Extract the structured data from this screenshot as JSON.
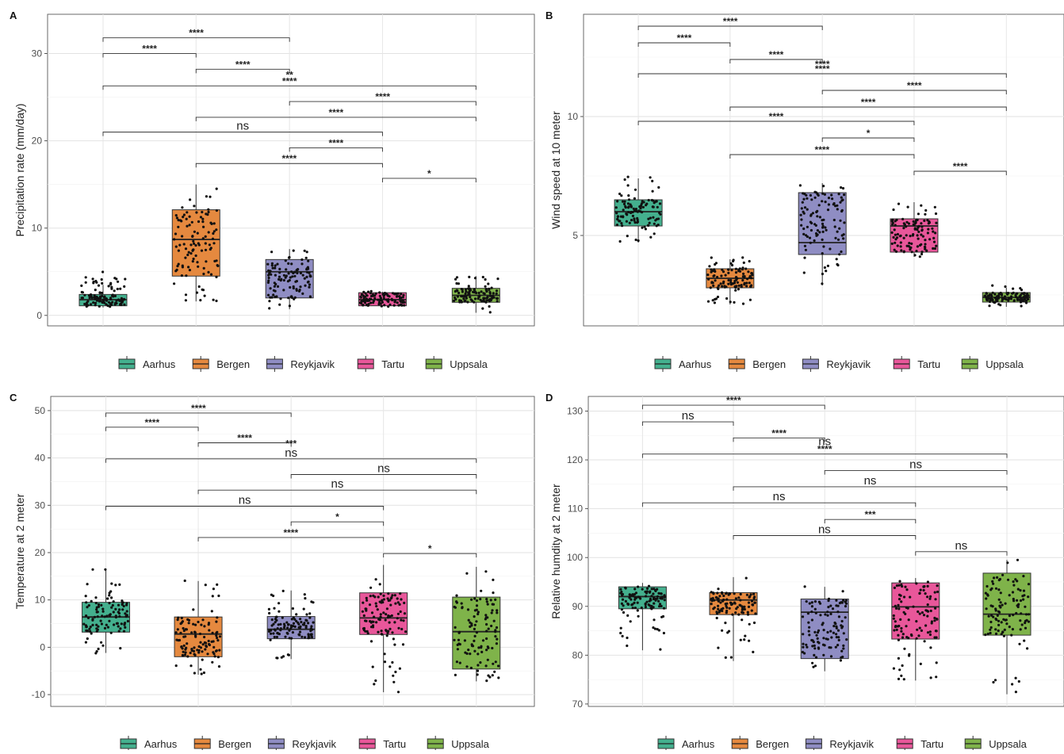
{
  "figure": {
    "legend_title": "",
    "legend_position": "bottom",
    "colors": {
      "Aarhus": "#44b08e",
      "Bergen": "#e5893f",
      "Reykjavik": "#8f8dc3",
      "Tartu": "#e8579a",
      "Uppsala": "#7fb34a"
    }
  },
  "chart_data": [
    {
      "panel": "A",
      "type": "box",
      "title": "",
      "xlabel": "",
      "ylabel": "Precipitation rate (mm/day)",
      "grid": true,
      "legend_position": "bottom",
      "ylim": [
        -1.2,
        34.5
      ],
      "yticks": [
        0,
        10,
        20,
        30
      ],
      "categories": [
        "Aarhus",
        "Bergen",
        "Reykjavik",
        "Tartu",
        "Uppsala"
      ],
      "boxes": [
        {
          "name": "Aarhus",
          "q1": 1.1,
          "median": 1.8,
          "q3": 2.4,
          "whisker_low": 0.9,
          "whisker_high": 3.5,
          "points_range": [
            0.9,
            5.0
          ]
        },
        {
          "name": "Bergen",
          "q1": 4.5,
          "median": 8.7,
          "q3": 12.1,
          "whisker_low": 1.6,
          "whisker_high": 15.0,
          "points_range": [
            1.5,
            15.0
          ]
        },
        {
          "name": "Reykjavik",
          "q1": 2.0,
          "median": 5.0,
          "q3": 6.4,
          "whisker_low": 0.7,
          "whisker_high": 7.6,
          "points_range": [
            0.7,
            7.7
          ]
        },
        {
          "name": "Tartu",
          "q1": 1.1,
          "median": 1.8,
          "q3": 2.6,
          "whisker_low": 1.0,
          "whisker_high": 2.7,
          "points_range": [
            1.0,
            2.8
          ]
        },
        {
          "name": "Uppsala",
          "q1": 1.5,
          "median": 2.3,
          "q3": 3.1,
          "whisker_low": 0.3,
          "whisker_high": 4.5,
          "points_range": [
            0.3,
            4.6
          ]
        }
      ],
      "annotations": [
        {
          "from": 0,
          "to": 2,
          "label": "****",
          "y": 31.8
        },
        {
          "from": 0,
          "to": 1,
          "label": "****",
          "y": 30.0
        },
        {
          "from": 1,
          "to": 2,
          "label": "****",
          "y": 28.2
        },
        {
          "from": 2,
          "to": 2,
          "label": "**",
          "y": 27.0
        },
        {
          "from": 0,
          "to": 4,
          "label": "****",
          "y": 26.3
        },
        {
          "from": 2,
          "to": 4,
          "label": "****",
          "y": 24.5
        },
        {
          "from": 1,
          "to": 4,
          "label": "****",
          "y": 22.7
        },
        {
          "from": 0,
          "to": 3,
          "label": "ns",
          "y": 21.0
        },
        {
          "from": 2,
          "to": 3,
          "label": "****",
          "y": 19.2
        },
        {
          "from": 1,
          "to": 3,
          "label": "****",
          "y": 17.4
        },
        {
          "from": 3,
          "to": 4,
          "label": "*",
          "y": 15.7
        }
      ]
    },
    {
      "panel": "B",
      "type": "box",
      "title": "",
      "xlabel": "",
      "ylabel": "Wind speed at 10 meter",
      "grid": true,
      "legend_position": "bottom",
      "ylim": [
        1.2,
        14.3
      ],
      "yticks": [
        5,
        10
      ],
      "categories": [
        "Aarhus",
        "Bergen",
        "Reykjavik",
        "Tartu",
        "Uppsala"
      ],
      "boxes": [
        {
          "name": "Aarhus",
          "q1": 5.4,
          "median": 6.0,
          "q3": 6.5,
          "whisker_low": 4.7,
          "whisker_high": 7.4,
          "points_range": [
            4.7,
            7.5
          ]
        },
        {
          "name": "Bergen",
          "q1": 2.8,
          "median": 3.2,
          "q3": 3.6,
          "whisker_low": 2.1,
          "whisker_high": 4.0,
          "points_range": [
            2.1,
            4.1
          ]
        },
        {
          "name": "Reykjavik",
          "q1": 4.2,
          "median": 4.7,
          "q3": 6.8,
          "whisker_low": 2.9,
          "whisker_high": 7.2,
          "points_range": [
            2.9,
            7.2
          ]
        },
        {
          "name": "Tartu",
          "q1": 4.3,
          "median": 5.4,
          "q3": 5.7,
          "whisker_low": 4.1,
          "whisker_high": 6.4,
          "points_range": [
            4.1,
            6.4
          ]
        },
        {
          "name": "Uppsala",
          "q1": 2.2,
          "median": 2.4,
          "q3": 2.6,
          "whisker_low": 2.0,
          "whisker_high": 2.8,
          "points_range": [
            2.0,
            2.9
          ]
        }
      ],
      "annotations": [
        {
          "from": 0,
          "to": 2,
          "label": "****",
          "y": 13.8
        },
        {
          "from": 0,
          "to": 1,
          "label": "****",
          "y": 13.1
        },
        {
          "from": 1,
          "to": 2,
          "label": "****",
          "y": 12.4
        },
        {
          "from": 2,
          "to": 2,
          "label": "****",
          "y": 12.0
        },
        {
          "from": 0,
          "to": 4,
          "label": "****",
          "y": 11.8
        },
        {
          "from": 2,
          "to": 4,
          "label": "****",
          "y": 11.1
        },
        {
          "from": 1,
          "to": 4,
          "label": "****",
          "y": 10.4
        },
        {
          "from": 0,
          "to": 3,
          "label": "****",
          "y": 9.8
        },
        {
          "from": 2,
          "to": 3,
          "label": "*",
          "y": 9.1
        },
        {
          "from": 1,
          "to": 3,
          "label": "****",
          "y": 8.4
        },
        {
          "from": 3,
          "to": 4,
          "label": "****",
          "y": 7.7
        }
      ]
    },
    {
      "panel": "C",
      "type": "box",
      "title": "",
      "xlabel": "",
      "ylabel": "Temperature at 2 meter",
      "grid": true,
      "legend_position": "bottom",
      "ylim": [
        -12.5,
        53.0
      ],
      "yticks": [
        -10,
        0,
        10,
        20,
        30,
        40,
        50
      ],
      "categories": [
        "Aarhus",
        "Bergen",
        "Reykjavik",
        "Tartu",
        "Uppsala"
      ],
      "boxes": [
        {
          "name": "Aarhus",
          "q1": 3.2,
          "median": 6.4,
          "q3": 9.5,
          "whisker_low": -1.2,
          "whisker_high": 16.4,
          "points_range": [
            -1.3,
            16.5
          ]
        },
        {
          "name": "Bergen",
          "q1": -2.0,
          "median": 2.8,
          "q3": 6.4,
          "whisker_low": -5.8,
          "whisker_high": 14.0,
          "points_range": [
            -5.9,
            14.2
          ]
        },
        {
          "name": "Reykjavik",
          "q1": 1.8,
          "median": 3.8,
          "q3": 6.5,
          "whisker_low": -2.5,
          "whisker_high": 12.0,
          "points_range": [
            -2.6,
            12.1
          ]
        },
        {
          "name": "Tartu",
          "q1": 2.7,
          "median": 6.2,
          "q3": 11.5,
          "whisker_low": -9.5,
          "whisker_high": 17.4,
          "points_range": [
            -9.6,
            17.5
          ]
        },
        {
          "name": "Uppsala",
          "q1": -4.6,
          "median": 3.3,
          "q3": 10.6,
          "whisker_low": -7.2,
          "whisker_high": 17.0,
          "points_range": [
            -7.3,
            17.1
          ]
        }
      ],
      "annotations": [
        {
          "from": 0,
          "to": 2,
          "label": "****",
          "y": 49.5
        },
        {
          "from": 0,
          "to": 1,
          "label": "****",
          "y": 46.5
        },
        {
          "from": 1,
          "to": 2,
          "label": "****",
          "y": 43.2
        },
        {
          "from": 2,
          "to": 2,
          "label": "***",
          "y": 42.0
        },
        {
          "from": 0,
          "to": 4,
          "label": "ns",
          "y": 39.8
        },
        {
          "from": 2,
          "to": 4,
          "label": "ns",
          "y": 36.5
        },
        {
          "from": 1,
          "to": 4,
          "label": "ns",
          "y": 33.2
        },
        {
          "from": 0,
          "to": 3,
          "label": "ns",
          "y": 29.8
        },
        {
          "from": 2,
          "to": 3,
          "label": "*",
          "y": 26.5
        },
        {
          "from": 1,
          "to": 3,
          "label": "****",
          "y": 23.2
        },
        {
          "from": 3,
          "to": 4,
          "label": "*",
          "y": 19.8
        }
      ]
    },
    {
      "panel": "D",
      "type": "box",
      "title": "",
      "xlabel": "",
      "ylabel": "Relative humdity at 2 meter",
      "grid": true,
      "legend_position": "bottom",
      "ylim": [
        69.5,
        133.0
      ],
      "yticks": [
        70,
        80,
        90,
        100,
        110,
        120,
        130
      ],
      "categories": [
        "Aarhus",
        "Bergen",
        "Reykjavik",
        "Tartu",
        "Uppsala"
      ],
      "boxes": [
        {
          "name": "Aarhus",
          "q1": 89.5,
          "median": 92.0,
          "q3": 94.0,
          "whisker_low": 81.0,
          "whisker_high": 94.8,
          "points_range": [
            80.8,
            95.0
          ]
        },
        {
          "name": "Bergen",
          "q1": 88.3,
          "median": 91.3,
          "q3": 92.8,
          "whisker_low": 78.8,
          "whisker_high": 96.0,
          "points_range": [
            78.6,
            96.2
          ]
        },
        {
          "name": "Reykjavik",
          "q1": 79.3,
          "median": 88.8,
          "q3": 91.5,
          "whisker_low": 76.7,
          "whisker_high": 94.0,
          "points_range": [
            76.5,
            94.2
          ]
        },
        {
          "name": "Tartu",
          "q1": 83.3,
          "median": 89.9,
          "q3": 94.8,
          "whisker_low": 74.8,
          "whisker_high": 95.8,
          "points_range": [
            74.8,
            96.0
          ]
        },
        {
          "name": "Uppsala",
          "q1": 84.1,
          "median": 88.4,
          "q3": 96.8,
          "whisker_low": 72.0,
          "whisker_high": 99.5,
          "points_range": [
            72.0,
            99.8
          ]
        }
      ],
      "annotations": [
        {
          "from": 0,
          "to": 2,
          "label": "****",
          "y": 131.2
        },
        {
          "from": 0,
          "to": 1,
          "label": "ns",
          "y": 127.8
        },
        {
          "from": 1,
          "to": 2,
          "label": "****",
          "y": 124.5
        },
        {
          "from": 2,
          "to": 2,
          "label": "ns",
          "y": 122.5
        },
        {
          "from": 0,
          "to": 4,
          "label": "****",
          "y": 121.2
        },
        {
          "from": 2,
          "to": 4,
          "label": "ns",
          "y": 117.8
        },
        {
          "from": 1,
          "to": 4,
          "label": "ns",
          "y": 114.5
        },
        {
          "from": 0,
          "to": 3,
          "label": "ns",
          "y": 111.2
        },
        {
          "from": 2,
          "to": 3,
          "label": "***",
          "y": 107.8
        },
        {
          "from": 1,
          "to": 3,
          "label": "ns",
          "y": 104.5
        },
        {
          "from": 3,
          "to": 4,
          "label": "ns",
          "y": 101.2
        }
      ]
    }
  ]
}
